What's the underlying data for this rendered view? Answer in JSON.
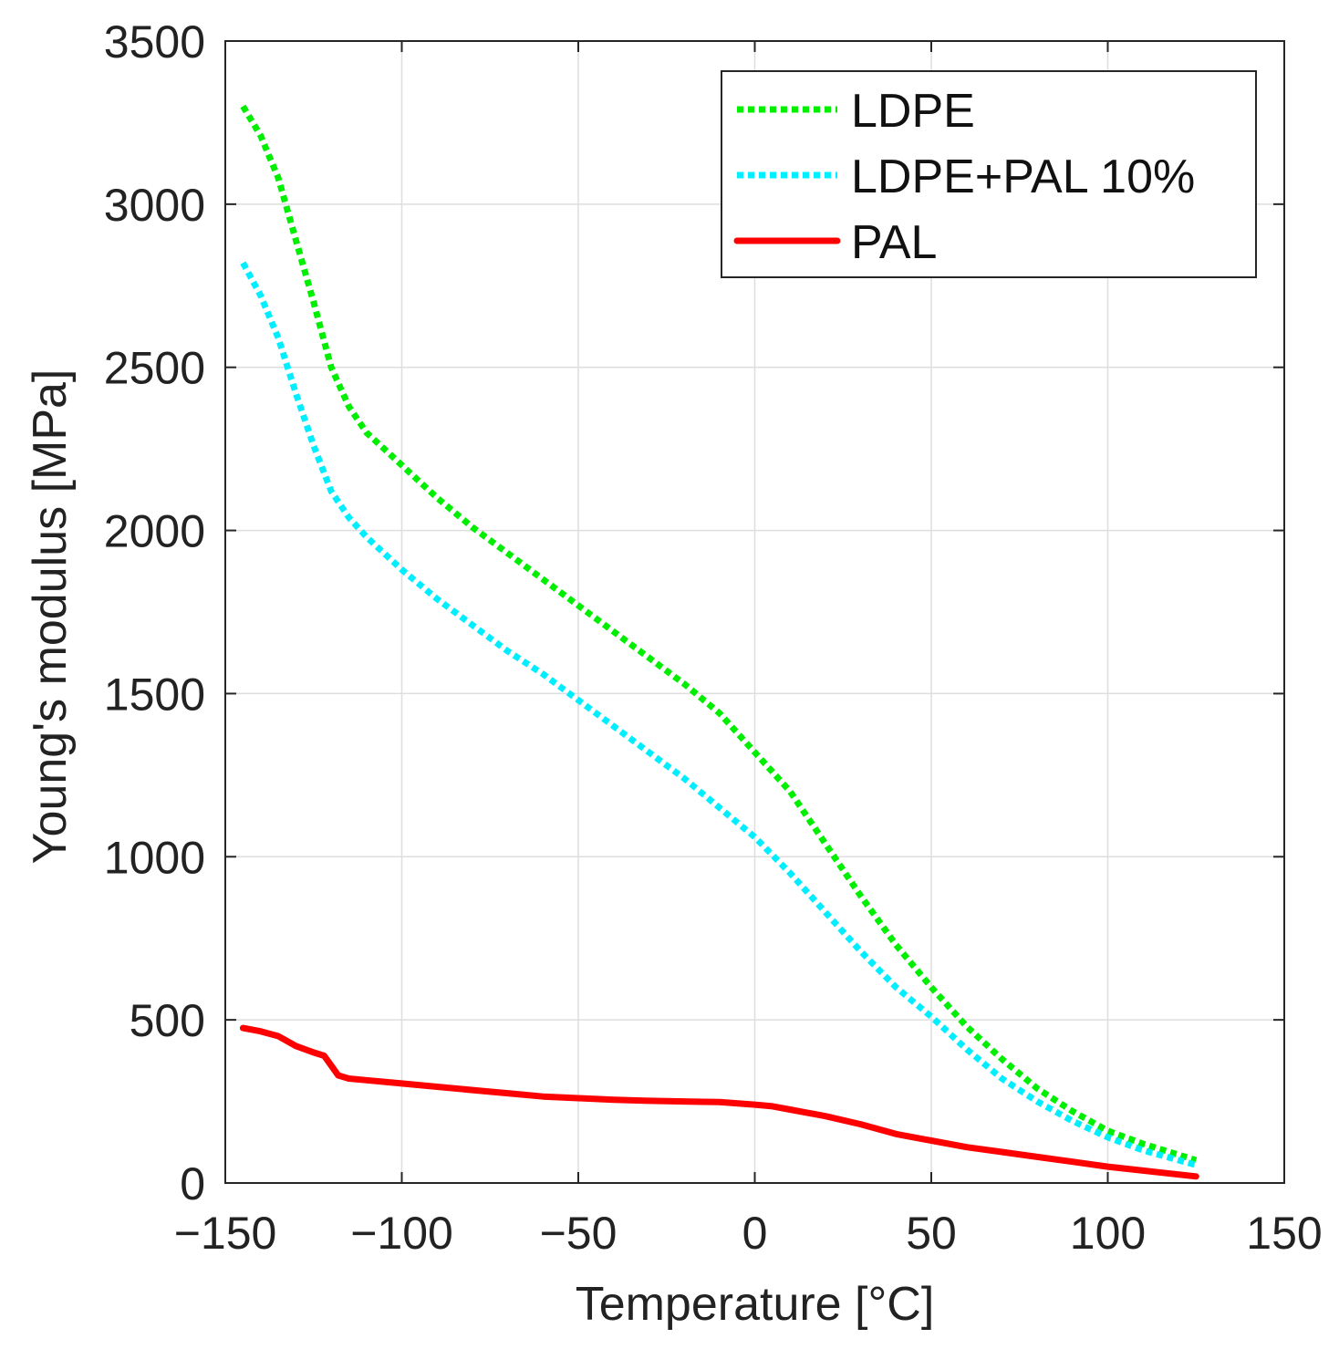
{
  "chart_data": {
    "type": "line",
    "title": "",
    "xlabel": "Temperature [°C]",
    "ylabel": "Young's modulus [MPa]",
    "xlim": [
      -150,
      150
    ],
    "ylim": [
      0,
      3500
    ],
    "grid": true,
    "legend_position": "top-right",
    "xticks": [
      -150,
      -100,
      -50,
      0,
      50,
      100,
      150
    ],
    "xtick_labels": [
      "−150",
      "−100",
      "−50",
      "0",
      "50",
      "100",
      "150"
    ],
    "yticks": [
      0,
      500,
      1000,
      1500,
      2000,
      2500,
      3000,
      3500
    ],
    "ytick_labels": [
      "0",
      "500",
      "1000",
      "1500",
      "2000",
      "2500",
      "3000",
      "3500"
    ],
    "series": [
      {
        "name": "LDPE",
        "color": "#00ee00",
        "style": "dotted",
        "x": [
          -145,
          -140,
          -135,
          -130,
          -125,
          -120,
          -115,
          -110,
          -100,
          -90,
          -80,
          -70,
          -60,
          -50,
          -40,
          -30,
          -20,
          -10,
          0,
          10,
          20,
          30,
          40,
          50,
          60,
          70,
          80,
          90,
          100,
          110,
          125
        ],
        "y": [
          3300,
          3210,
          3080,
          2890,
          2700,
          2500,
          2380,
          2300,
          2200,
          2100,
          2010,
          1930,
          1850,
          1770,
          1690,
          1610,
          1530,
          1440,
          1320,
          1200,
          1040,
          880,
          730,
          600,
          480,
          380,
          290,
          220,
          160,
          120,
          70
        ]
      },
      {
        "name": "LDPE+PAL 10%",
        "color": "#00eeff",
        "style": "dotted",
        "x": [
          -145,
          -140,
          -135,
          -130,
          -125,
          -120,
          -115,
          -110,
          -100,
          -90,
          -80,
          -70,
          -60,
          -50,
          -40,
          -30,
          -20,
          -10,
          0,
          10,
          20,
          30,
          40,
          50,
          60,
          70,
          80,
          90,
          100,
          110,
          125
        ],
        "y": [
          2820,
          2720,
          2590,
          2420,
          2260,
          2120,
          2040,
          1980,
          1880,
          1790,
          1710,
          1630,
          1560,
          1480,
          1400,
          1320,
          1240,
          1150,
          1060,
          950,
          830,
          710,
          600,
          510,
          410,
          320,
          250,
          190,
          140,
          100,
          55
        ]
      },
      {
        "name": "PAL",
        "color": "#ff0000",
        "style": "solid",
        "x": [
          -145,
          -140,
          -135,
          -130,
          -125,
          -122,
          -120,
          -118,
          -115,
          -110,
          -100,
          -90,
          -80,
          -70,
          -60,
          -50,
          -40,
          -30,
          -20,
          -10,
          0,
          5,
          10,
          20,
          30,
          40,
          50,
          60,
          70,
          80,
          90,
          100,
          110,
          125
        ],
        "y": [
          475,
          465,
          450,
          420,
          400,
          390,
          360,
          330,
          320,
          315,
          305,
          295,
          285,
          275,
          265,
          260,
          255,
          252,
          250,
          248,
          240,
          235,
          225,
          205,
          180,
          150,
          130,
          110,
          95,
          80,
          65,
          50,
          38,
          20
        ]
      }
    ]
  }
}
